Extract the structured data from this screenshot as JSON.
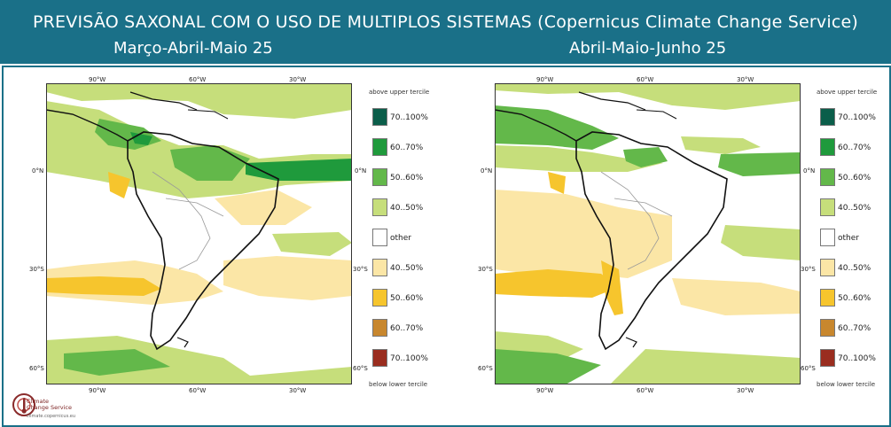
{
  "header": {
    "title": "PREVISÃO SAXONAL COM O USO DE MULTIPLOS SISTEMAS (Copernicus Climate Change Service)",
    "period_left": "Março-Abril-Maio 25",
    "period_right": "Abril-Maio-Junho 25"
  },
  "map_ticks": {
    "lon": [
      "90°W",
      "60°W",
      "30°W"
    ],
    "lat": [
      "0°N",
      "30°S",
      "60°S"
    ]
  },
  "legend": {
    "top_label": "above upper tercile",
    "bottom_label": "below lower tercile",
    "items": [
      {
        "label": "70..100%",
        "color": "#0b5e4a"
      },
      {
        "label": "60..70%",
        "color": "#1f9a3c"
      },
      {
        "label": "50..60%",
        "color": "#63b84a"
      },
      {
        "label": "40..50%",
        "color": "#c6de7b"
      },
      {
        "label": "other",
        "color": "#ffffff"
      },
      {
        "label": "40..50%",
        "color": "#fbe6a6"
      },
      {
        "label": "50..60%",
        "color": "#f6c52d"
      },
      {
        "label": "60..70%",
        "color": "#c8872e"
      },
      {
        "label": "70..100%",
        "color": "#9a2d1f"
      }
    ]
  },
  "logo": {
    "name_line1": "Climate",
    "name_line2": "Change Service",
    "url": "climate.copernicus.eu"
  }
}
